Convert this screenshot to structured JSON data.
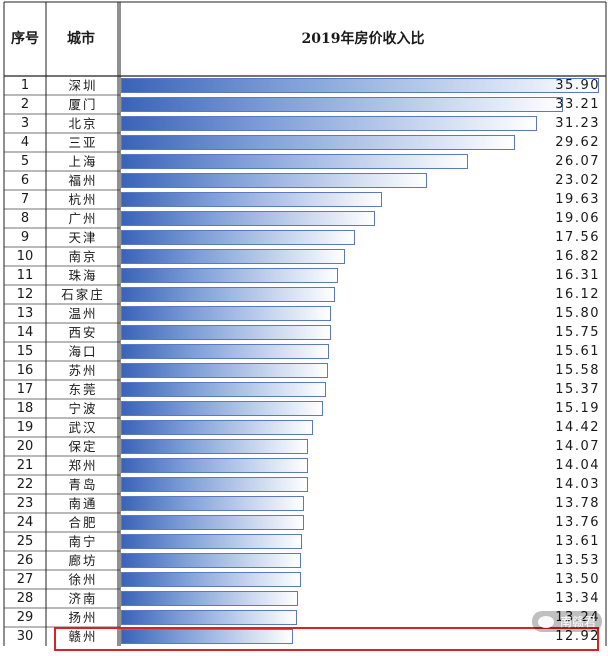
{
  "header": {
    "seq_label": "序号",
    "city_label": "城市",
    "title": "2019年房价收入比"
  },
  "watermark": {
    "text": "南赣君"
  },
  "chart_data": {
    "type": "bar",
    "orientation": "horizontal",
    "title": "2019年房价收入比",
    "xlim": [
      0,
      36
    ],
    "grid": false,
    "legend": "none",
    "bar_color": "#3a63b8",
    "highlight_color": "#e02020",
    "highlight_row": 30,
    "rows": [
      {
        "rank": "1",
        "city": "深圳",
        "value": 35.9,
        "label": "35.90"
      },
      {
        "rank": "2",
        "city": "厦门",
        "value": 33.21,
        "label": "33.21"
      },
      {
        "rank": "3",
        "city": "北京",
        "value": 31.23,
        "label": "31.23"
      },
      {
        "rank": "4",
        "city": "三亚",
        "value": 29.62,
        "label": "29.62"
      },
      {
        "rank": "5",
        "city": "上海",
        "value": 26.07,
        "label": "26.07"
      },
      {
        "rank": "6",
        "city": "福州",
        "value": 23.02,
        "label": "23.02"
      },
      {
        "rank": "7",
        "city": "杭州",
        "value": 19.63,
        "label": "19.63"
      },
      {
        "rank": "8",
        "city": "广州",
        "value": 19.06,
        "label": "19.06"
      },
      {
        "rank": "9",
        "city": "天津",
        "value": 17.56,
        "label": "17.56"
      },
      {
        "rank": "10",
        "city": "南京",
        "value": 16.82,
        "label": "16.82"
      },
      {
        "rank": "11",
        "city": "珠海",
        "value": 16.31,
        "label": "16.31"
      },
      {
        "rank": "12",
        "city": "石家庄",
        "value": 16.12,
        "label": "16.12"
      },
      {
        "rank": "13",
        "city": "温州",
        "value": 15.8,
        "label": "15.80"
      },
      {
        "rank": "14",
        "city": "西安",
        "value": 15.75,
        "label": "15.75"
      },
      {
        "rank": "15",
        "city": "海口",
        "value": 15.61,
        "label": "15.61"
      },
      {
        "rank": "16",
        "city": "苏州",
        "value": 15.58,
        "label": "15.58"
      },
      {
        "rank": "17",
        "city": "东莞",
        "value": 15.37,
        "label": "15.37"
      },
      {
        "rank": "18",
        "city": "宁波",
        "value": 15.19,
        "label": "15.19"
      },
      {
        "rank": "19",
        "city": "武汉",
        "value": 14.42,
        "label": "14.42"
      },
      {
        "rank": "20",
        "city": "保定",
        "value": 14.07,
        "label": "14.07"
      },
      {
        "rank": "21",
        "city": "郑州",
        "value": 14.04,
        "label": "14.04"
      },
      {
        "rank": "22",
        "city": "青岛",
        "value": 14.03,
        "label": "14.03"
      },
      {
        "rank": "23",
        "city": "南通",
        "value": 13.78,
        "label": "13.78"
      },
      {
        "rank": "24",
        "city": "合肥",
        "value": 13.76,
        "label": "13.76"
      },
      {
        "rank": "25",
        "city": "南宁",
        "value": 13.61,
        "label": "13.61"
      },
      {
        "rank": "26",
        "city": "廊坊",
        "value": 13.53,
        "label": "13.53"
      },
      {
        "rank": "27",
        "city": "徐州",
        "value": 13.5,
        "label": "13.50"
      },
      {
        "rank": "28",
        "city": "济南",
        "value": 13.34,
        "label": "13.34"
      },
      {
        "rank": "29",
        "city": "扬州",
        "value": 13.24,
        "label": "13.24"
      },
      {
        "rank": "30",
        "city": "赣州",
        "value": 12.92,
        "label": "12.92"
      }
    ]
  }
}
